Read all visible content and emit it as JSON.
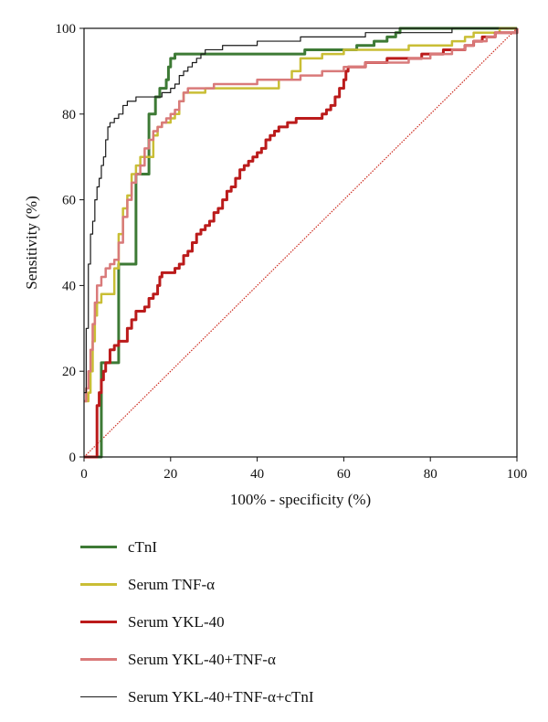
{
  "chart_data": {
    "type": "line",
    "title": "",
    "xlabel": "100% - specificity (%)",
    "ylabel": "Sensitivity (%)",
    "xlim": [
      0,
      100
    ],
    "ylim": [
      0,
      100
    ],
    "xticks": [
      "0",
      "20",
      "40",
      "60",
      "80",
      "100"
    ],
    "yticks": [
      "0",
      "20",
      "40",
      "60",
      "80",
      "100"
    ],
    "grid": false,
    "legend_position": "bottom",
    "reference_line": {
      "x": [
        0,
        100
      ],
      "y": [
        0,
        100
      ],
      "color": "#cc2a1e",
      "style": "dotted"
    },
    "series": [
      {
        "name": "cTnI",
        "color": "#3d7a35",
        "x": [
          0,
          4,
          8,
          12,
          15,
          16.5,
          17.5,
          18.5,
          19,
          19.5,
          20,
          21,
          23,
          30,
          40,
          49,
          51,
          55,
          58,
          60,
          61,
          63,
          65,
          67,
          70,
          72,
          73,
          75,
          80,
          90,
          95,
          100
        ],
        "y": [
          0,
          22,
          45,
          66,
          80,
          84,
          86,
          86,
          88,
          91,
          93,
          94,
          94,
          94,
          94,
          94,
          95,
          95,
          95,
          95,
          95,
          96,
          96,
          97,
          98,
          99,
          100,
          100,
          100,
          100,
          100,
          100
        ]
      },
      {
        "name": "Serum TNF-α",
        "color": "#c9be35",
        "x": [
          0,
          1,
          1.5,
          2,
          2.5,
          3,
          4,
          6,
          7,
          8,
          9,
          10,
          11,
          12,
          13,
          14,
          15,
          16,
          17,
          18,
          20,
          21,
          22,
          23,
          25,
          28,
          32,
          35,
          40,
          45,
          48,
          50,
          55,
          60,
          65,
          70,
          75,
          80,
          85,
          88,
          90,
          93,
          96,
          100
        ],
        "y": [
          13,
          15,
          20,
          27,
          33,
          36,
          38,
          38,
          44,
          52,
          58,
          61,
          66,
          68,
          70,
          70,
          70,
          75,
          77,
          78,
          79,
          80,
          83,
          85,
          85,
          86,
          86,
          86,
          86,
          88,
          90,
          93,
          94,
          95,
          95,
          95,
          96,
          96,
          97,
          98,
          99,
          99,
          100,
          100
        ]
      },
      {
        "name": "Serum YKL-40",
        "color": "#bb1b1b",
        "x": [
          0,
          2.5,
          3,
          3.5,
          4,
          4.5,
          5,
          6,
          7,
          8,
          10,
          11,
          12,
          14,
          15,
          16,
          17,
          17.5,
          18,
          20,
          21,
          22,
          23,
          24,
          25,
          26,
          27,
          28,
          29,
          30,
          31,
          32,
          33,
          34,
          35,
          36,
          37,
          38,
          39,
          40,
          41,
          42,
          43,
          44,
          45,
          47,
          49,
          51,
          53,
          55,
          56,
          57,
          58,
          59,
          60,
          60.5,
          61,
          62,
          63,
          65,
          66,
          68,
          70,
          72,
          75,
          78,
          80,
          83,
          85,
          88,
          90,
          92,
          95,
          100
        ],
        "y": [
          0,
          0,
          12,
          15,
          18,
          20,
          22,
          25,
          26,
          27,
          30,
          32,
          34,
          35,
          37,
          38,
          40,
          42,
          43,
          43,
          44,
          45,
          47,
          48,
          50,
          52,
          53,
          54,
          55,
          57,
          58,
          60,
          62,
          63,
          65,
          67,
          68,
          69,
          70,
          71,
          72,
          74,
          75,
          76,
          77,
          78,
          79,
          79,
          79,
          80,
          81,
          82,
          84,
          86,
          88,
          90,
          91,
          91,
          91,
          92,
          92,
          92,
          93,
          93,
          93,
          94,
          94,
          95,
          95,
          96,
          97,
          98,
          99,
          100
        ]
      },
      {
        "name": "Serum YKL-40+TNF-α",
        "color": "#d97a7a",
        "x": [
          0,
          0.5,
          1,
          1.5,
          2,
          2.5,
          3,
          4,
          5,
          6,
          7,
          8,
          9,
          10,
          11,
          12,
          13,
          14,
          15,
          16,
          17,
          18,
          19,
          20,
          21,
          22,
          23,
          24,
          26,
          30,
          35,
          40,
          45,
          50,
          55,
          60,
          65,
          70,
          75,
          80,
          85,
          88,
          90,
          93,
          95,
          100
        ],
        "y": [
          13,
          16,
          20,
          25,
          31,
          36,
          40,
          42,
          44,
          45,
          46,
          50,
          56,
          60,
          64,
          66,
          68,
          72,
          74,
          76,
          77,
          78,
          79,
          80,
          81,
          83,
          85,
          86,
          86,
          87,
          87,
          88,
          88,
          89,
          90,
          91,
          92,
          92,
          93,
          94,
          95,
          96,
          97,
          98,
          99,
          100
        ]
      },
      {
        "name": "Serum YKL-40+TNF-α+cTnI",
        "color": "#1a1a1a",
        "x": [
          0,
          0.5,
          1,
          1.5,
          2,
          2.5,
          3,
          3.5,
          4,
          4.5,
          5,
          5.5,
          6,
          7,
          8,
          9,
          10,
          12,
          14,
          16,
          18,
          20,
          21,
          22,
          23,
          24,
          25,
          26,
          27,
          28,
          30,
          32,
          35,
          40,
          45,
          50,
          55,
          60,
          65,
          70,
          75,
          80,
          85,
          90,
          95,
          100
        ],
        "y": [
          15,
          30,
          45,
          52,
          55,
          60,
          63,
          65,
          68,
          70,
          74,
          77,
          78,
          79,
          80,
          82,
          83,
          84,
          84,
          84,
          85,
          86,
          87,
          89,
          90,
          91,
          92,
          93,
          94,
          95,
          95,
          96,
          96,
          97,
          97,
          98,
          98,
          98,
          99,
          99,
          99,
          99,
          100,
          100,
          100,
          100
        ]
      }
    ]
  },
  "legend": {
    "items": [
      {
        "label": "cTnI",
        "color": "#3d7a35"
      },
      {
        "label": "Serum TNF-α",
        "color": "#c9be35"
      },
      {
        "label": "Serum YKL-40",
        "color": "#bb1b1b"
      },
      {
        "label": "Serum YKL-40+TNF-α",
        "color": "#d97a7a"
      },
      {
        "label": "Serum YKL-40+TNF-α+cTnI",
        "color": "#1a1a1a"
      }
    ]
  }
}
